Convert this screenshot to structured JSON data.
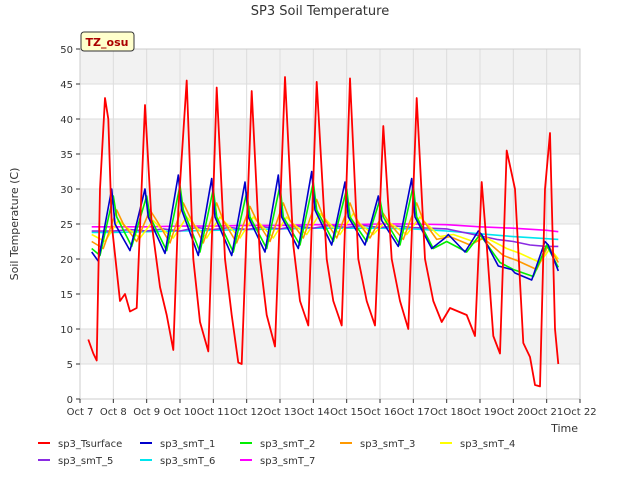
{
  "chart_data": {
    "type": "line",
    "title": "SP3 Soil Temperature",
    "xlabel": "Time",
    "ylabel": "Soil Temperature (C)",
    "ylim": [
      0,
      50
    ],
    "xlim": [
      7,
      22
    ],
    "yticks": [
      0,
      5,
      10,
      15,
      20,
      25,
      30,
      35,
      40,
      45,
      50
    ],
    "xticks": [
      {
        "x": 7,
        "label": "Oct 7"
      },
      {
        "x": 8,
        "label": "Oct 8"
      },
      {
        "x": 9,
        "label": "Oct 9"
      },
      {
        "x": 10,
        "label": "Oct 10"
      },
      {
        "x": 11,
        "label": "Oct 11"
      },
      {
        "x": 12,
        "label": "Oct 12"
      },
      {
        "x": 13,
        "label": "Oct 13"
      },
      {
        "x": 14,
        "label": "Oct 14"
      },
      {
        "x": 15,
        "label": "Oct 15"
      },
      {
        "x": 16,
        "label": "Oct 16"
      },
      {
        "x": 17,
        "label": "Oct 17"
      },
      {
        "x": 18,
        "label": "Oct 18"
      },
      {
        "x": 19,
        "label": "Oct 19"
      },
      {
        "x": 20,
        "label": "Oct 20"
      },
      {
        "x": 21,
        "label": "Oct 21"
      },
      {
        "x": 22,
        "label": "Oct 22"
      }
    ],
    "grid": true,
    "legend_position": "bottom",
    "annotation": "TZ_osu",
    "series": [
      {
        "name": "sp3_Tsurface",
        "color": "#ff0000",
        "x": [
          7.25,
          7.4,
          7.5,
          7.6,
          7.75,
          7.85,
          7.95,
          8.2,
          8.35,
          8.5,
          8.7,
          8.95,
          9.15,
          9.4,
          9.6,
          9.8,
          9.95,
          10.2,
          10.4,
          10.6,
          10.85,
          11.1,
          11.35,
          11.55,
          11.75,
          11.85,
          12.15,
          12.4,
          12.6,
          12.85,
          13.15,
          13.4,
          13.6,
          13.85,
          14.1,
          14.4,
          14.6,
          14.85,
          15.1,
          15.35,
          15.6,
          15.85,
          16.1,
          16.35,
          16.6,
          16.85,
          17.1,
          17.35,
          17.6,
          17.85,
          18.1,
          18.35,
          18.6,
          18.85,
          19.05,
          19.2,
          19.4,
          19.6,
          19.8,
          20.05,
          20.3,
          20.5,
          20.65,
          20.8,
          20.95,
          21.1,
          21.25,
          21.35
        ],
        "y": [
          8.5,
          6.5,
          5.5,
          30,
          43,
          40,
          25,
          14,
          15,
          12.5,
          13,
          42,
          25,
          16,
          12,
          7,
          27,
          45.5,
          20,
          11,
          6.8,
          44.5,
          20,
          12,
          5.2,
          5,
          44,
          20,
          12,
          7.5,
          46,
          22,
          14,
          10.5,
          45.3,
          20,
          14,
          10.5,
          45.8,
          20,
          14,
          10.5,
          39,
          20,
          14,
          10,
          43,
          20,
          14,
          11,
          13,
          12.5,
          12,
          9,
          31,
          22,
          9,
          6.5,
          35.5,
          30,
          8,
          6,
          2,
          1.8,
          30,
          38,
          10,
          5
        ]
      },
      {
        "name": "sp3_smT_1",
        "color": "#0000cc",
        "x": [
          7.35,
          7.55,
          7.95,
          8.05,
          8.5,
          8.95,
          9.05,
          9.55,
          9.95,
          10.05,
          10.55,
          10.95,
          11.05,
          11.55,
          11.95,
          12.05,
          12.55,
          12.95,
          13.05,
          13.55,
          13.95,
          14.05,
          14.55,
          14.95,
          15.05,
          15.55,
          15.95,
          16.05,
          16.55,
          16.95,
          17.05,
          17.55,
          17.95,
          18.05,
          18.55,
          18.95,
          19.05,
          19.55,
          19.95,
          20.05,
          20.55,
          20.95,
          21.05,
          21.35
        ],
        "y": [
          21,
          19.7,
          30,
          25,
          21.2,
          30,
          26,
          20.8,
          32,
          27,
          20.5,
          31.5,
          26,
          20.5,
          31,
          26,
          21,
          32,
          26,
          21.5,
          32.5,
          27,
          22,
          31,
          26,
          22,
          29,
          25.5,
          21.8,
          31.5,
          26,
          21.5,
          23,
          23.5,
          21,
          24,
          23.5,
          19,
          18.5,
          18,
          17,
          22.5,
          22,
          18.3
        ]
      },
      {
        "name": "sp3_smT_2",
        "color": "#00ee00",
        "x": [
          7.35,
          7.6,
          8.0,
          8.1,
          8.55,
          9.0,
          9.1,
          9.6,
          10.0,
          10.1,
          10.6,
          11.0,
          11.1,
          11.6,
          12.0,
          12.1,
          12.6,
          13.0,
          13.1,
          13.6,
          14.0,
          14.1,
          14.6,
          15.0,
          15.1,
          15.6,
          16.0,
          16.1,
          16.6,
          17.0,
          17.1,
          17.6,
          18.0,
          18.6,
          19.0,
          19.6,
          20.0,
          20.6,
          21.0,
          21.35
        ],
        "y": [
          21.5,
          20.5,
          29,
          26,
          21.8,
          29,
          26,
          21.2,
          30.5,
          27,
          21,
          30,
          26,
          21,
          29.5,
          26,
          21.5,
          30.5,
          26,
          22,
          31,
          27,
          22.5,
          30,
          26,
          22.5,
          28.5,
          26,
          22,
          30.5,
          26,
          21.5,
          22.5,
          21,
          23.5,
          19.5,
          18.5,
          17.5,
          22,
          18.8
        ]
      },
      {
        "name": "sp3_smT_3",
        "color": "#ff9900",
        "x": [
          7.35,
          7.7,
          8.1,
          8.3,
          8.7,
          9.1,
          9.3,
          9.7,
          10.1,
          10.3,
          10.7,
          11.1,
          11.3,
          11.7,
          12.1,
          12.3,
          12.7,
          13.1,
          13.3,
          13.7,
          14.1,
          14.3,
          14.7,
          15.1,
          15.3,
          15.7,
          16.1,
          16.3,
          16.7,
          17.1,
          17.3,
          17.7,
          18.1,
          18.7,
          19.1,
          19.7,
          20.1,
          20.7,
          21.05,
          21.35
        ],
        "y": [
          22.5,
          21.5,
          27,
          25,
          22.5,
          27,
          25.5,
          22.3,
          28,
          26,
          22.3,
          28,
          25.5,
          22.3,
          27.5,
          25.5,
          22.5,
          28,
          25.5,
          23,
          28.5,
          26,
          23,
          28,
          25.5,
          23,
          26.5,
          25,
          22.8,
          28,
          25.5,
          22.8,
          23.2,
          22,
          23,
          20.5,
          19.8,
          18.5,
          22,
          19.5
        ]
      },
      {
        "name": "sp3_smT_4",
        "color": "#ffff00",
        "x": [
          7.35,
          7.75,
          8.15,
          8.4,
          8.8,
          9.2,
          9.4,
          9.8,
          10.2,
          10.4,
          10.8,
          11.2,
          11.4,
          11.8,
          12.2,
          12.4,
          12.8,
          13.2,
          13.4,
          13.8,
          14.2,
          14.4,
          14.8,
          15.2,
          15.4,
          15.8,
          16.2,
          16.4,
          16.8,
          17.2,
          17.4,
          17.8,
          18.2,
          18.8,
          19.2,
          19.8,
          20.2,
          20.8,
          21.1,
          21.35
        ],
        "y": [
          23.5,
          22.5,
          25.5,
          24.5,
          23,
          25.5,
          24.5,
          23,
          26,
          25,
          23,
          26,
          25,
          23,
          26,
          25,
          23,
          26,
          25,
          23.5,
          26.5,
          25.5,
          23.5,
          26.5,
          25,
          23.5,
          25.5,
          24.8,
          23.5,
          26,
          25,
          23.2,
          23.5,
          22.5,
          23,
          21.5,
          20.8,
          19.5,
          21.5,
          20
        ]
      },
      {
        "name": "sp3_smT_5",
        "color": "#8a2be2",
        "x": [
          7.35,
          8.0,
          8.5,
          9.0,
          9.5,
          10.0,
          10.5,
          11.0,
          11.5,
          12.0,
          12.5,
          13.0,
          13.5,
          14.0,
          14.5,
          15.0,
          15.5,
          16.0,
          16.5,
          17.0,
          17.5,
          18.0,
          18.5,
          19.0,
          19.5,
          20.0,
          20.5,
          21.0,
          21.35
        ],
        "y": [
          24,
          24,
          24.2,
          24,
          24.3,
          24,
          24.5,
          24.2,
          24.5,
          24.2,
          24.6,
          24.3,
          24.7,
          24.4,
          24.8,
          24.5,
          24.8,
          24.5,
          24.7,
          24.5,
          24.4,
          24.3,
          23.8,
          23.3,
          22.8,
          22.5,
          22,
          21.8,
          21.8
        ]
      },
      {
        "name": "sp3_smT_6",
        "color": "#00e5ee",
        "x": [
          7.35,
          8.0,
          9.0,
          10.0,
          11.0,
          12.0,
          13.0,
          14.0,
          15.0,
          16.0,
          17.0,
          18.0,
          19.0,
          20.0,
          21.0,
          21.35
        ],
        "y": [
          23.8,
          23.8,
          23.9,
          24,
          24.1,
          24.2,
          24.3,
          24.4,
          24.4,
          24.4,
          24.3,
          24,
          23.6,
          23.2,
          22.9,
          22.8
        ]
      },
      {
        "name": "sp3_smT_7",
        "color": "#ff00ff",
        "x": [
          7.35,
          8.0,
          9.0,
          10.0,
          11.0,
          12.0,
          13.0,
          14.0,
          15.0,
          16.0,
          17.0,
          18.0,
          19.0,
          20.0,
          21.0,
          21.35
        ],
        "y": [
          24.6,
          24.6,
          24.6,
          24.7,
          24.7,
          24.8,
          24.8,
          24.9,
          24.9,
          25,
          25,
          24.9,
          24.6,
          24.4,
          24.1,
          23.9
        ]
      }
    ]
  }
}
